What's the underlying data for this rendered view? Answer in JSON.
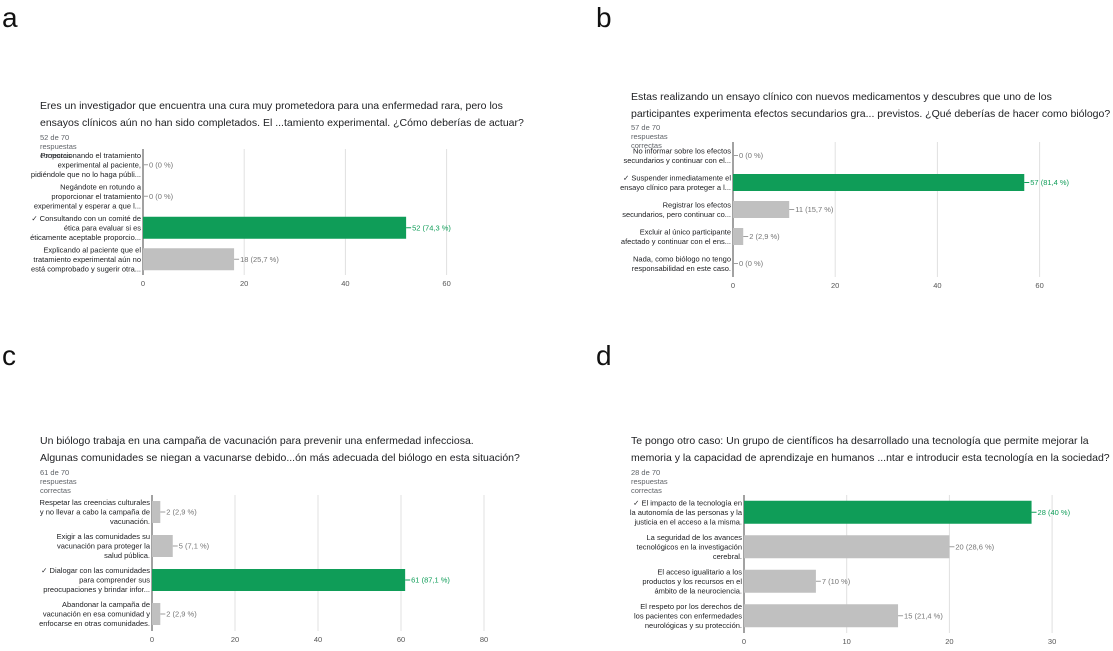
{
  "colors": {
    "correct": "#0f9d58",
    "incorrect": "#c0c0c0",
    "correct_label": "#0f9d58",
    "incorrect_label": "#757575",
    "axis": "#444444",
    "grid": "#e0e0e0"
  },
  "panels": [
    {
      "letter": "a",
      "question_line1": "Eres un investigador que encuentra una cura muy prometedora para una enfermedad rara, pero los",
      "question_line2": "ensayos clínicos aún no han sido completados. El ...tamiento experimental. ¿Cómo deberías de actuar?",
      "summary": "52 de 70 respuestas correctas"
    },
    {
      "letter": "b",
      "question_line1": "Estas realizando un ensayo clínico con nuevos medicamentos y descubres que uno de los",
      "question_line2": "participantes experimenta efectos secundarios gra... previstos. ¿Qué deberías de hacer como biólogo?",
      "summary": "57 de 70 respuestas correctas"
    },
    {
      "letter": "c",
      "question_line1": "Un biólogo trabaja en una campaña de vacunación para prevenir una enfermedad infecciosa.",
      "question_line2": "Algunas comunidades se niegan a vacunarse debido...ón  más adecuada del biólogo en esta situación?",
      "summary": "61 de 70 respuestas correctas"
    },
    {
      "letter": "d",
      "question_line1": "Te pongo otro caso: Un grupo de científicos ha desarrollado una tecnología que permite mejorar la",
      "question_line2": "memoria y la capacidad de aprendizaje en humanos ...ntar e introducir esta tecnología en la sociedad?",
      "summary": "28 de 70 respuestas correctas"
    }
  ],
  "chart_data": [
    {
      "type": "bar",
      "orientation": "horizontal",
      "categories": [
        [
          "Proporcionando el tratamiento",
          "experimental al paciente,",
          "pidiéndole que no lo haga públi..."
        ],
        [
          "Negándote en rotundo a",
          "proporcionar el tratamiento",
          "experimental y esperar a que l..."
        ],
        [
          "✓ Consultando con un comité de",
          "ética para evaluar si es",
          "éticamente aceptable proporcio..."
        ],
        [
          "Explicando al paciente que el",
          "tratamiento experimental aún no",
          "está comprobado y sugerir otra..."
        ]
      ],
      "values": [
        0,
        0,
        52,
        18
      ],
      "value_labels": [
        "0 (0 %)",
        "0 (0 %)",
        "52 (74,3 %)",
        "18 (25,7 %)"
      ],
      "correct": [
        false,
        false,
        true,
        false
      ],
      "xlim": [
        0,
        60
      ],
      "xticks": [
        0,
        20,
        40,
        60
      ],
      "xtick_labels": [
        "0",
        "20",
        "40",
        "60"
      ]
    },
    {
      "type": "bar",
      "orientation": "horizontal",
      "categories": [
        [
          "No informar sobre los efectos",
          "secundarios y continuar con el..."
        ],
        [
          "✓ Suspender inmediatamente el",
          "ensayo clínico para proteger a l..."
        ],
        [
          "Registrar los efectos",
          "secundarios, pero continuar co..."
        ],
        [
          "Excluir al único participante",
          "afectado y continuar con el ens..."
        ],
        [
          "Nada, como biólogo no tengo",
          "responsabilidad en este caso."
        ]
      ],
      "values": [
        0,
        57,
        11,
        2,
        0
      ],
      "value_labels": [
        "0 (0 %)",
        "57 (81,4 %)",
        "11 (15,7 %)",
        "2 (2,9 %)",
        "0 (0 %)"
      ],
      "correct": [
        false,
        true,
        false,
        false,
        false
      ],
      "xlim": [
        0,
        60
      ],
      "xticks": [
        0,
        20,
        40,
        60
      ],
      "xtick_labels": [
        "0",
        "20",
        "40",
        "60"
      ]
    },
    {
      "type": "bar",
      "orientation": "horizontal",
      "categories": [
        [
          "Respetar las creencias culturales",
          "y no llevar a cabo la campaña de",
          "vacunación."
        ],
        [
          "Exigir a las comunidades su",
          "vacunación para proteger la",
          "salud pública."
        ],
        [
          "✓ Dialogar con las comunidades",
          "para comprender sus",
          "preocupaciones y brindar infor..."
        ],
        [
          "Abandonar la campaña de",
          "vacunación en esa comunidad y",
          "enfocarse en otras comunidades."
        ]
      ],
      "values": [
        2,
        5,
        61,
        2
      ],
      "value_labels": [
        "2 (2,9 %)",
        "5 (7,1 %)",
        "61 (87,1 %)",
        "2 (2,9 %)"
      ],
      "correct": [
        false,
        false,
        true,
        false
      ],
      "xlim": [
        0,
        80
      ],
      "xticks": [
        0,
        20,
        40,
        60,
        80
      ],
      "xtick_labels": [
        "0",
        "20",
        "40",
        "60",
        "80"
      ]
    },
    {
      "type": "bar",
      "orientation": "horizontal",
      "categories": [
        [
          "✓ El impacto de la tecnología en",
          "la autonomía de las personas y la",
          "justicia en el acceso a la misma."
        ],
        [
          "La seguridad de los avances",
          "tecnológicos en la investigación",
          "cerebral."
        ],
        [
          "El acceso igualitario a los",
          "productos y los recursos en el",
          "ámbito de la neurociencia."
        ],
        [
          "El respeto por los derechos de",
          "los pacientes con enfermedades",
          "neurológicas y su protección."
        ]
      ],
      "values": [
        28,
        20,
        7,
        15
      ],
      "value_labels": [
        "28 (40 %)",
        "20 (28,6 %)",
        "7 (10 %)",
        "15 (21,4 %)"
      ],
      "correct": [
        true,
        false,
        false,
        false
      ],
      "xlim": [
        0,
        30
      ],
      "xticks": [
        0,
        10,
        20,
        30
      ],
      "xtick_labels": [
        "0",
        "10",
        "20",
        "30"
      ]
    }
  ]
}
